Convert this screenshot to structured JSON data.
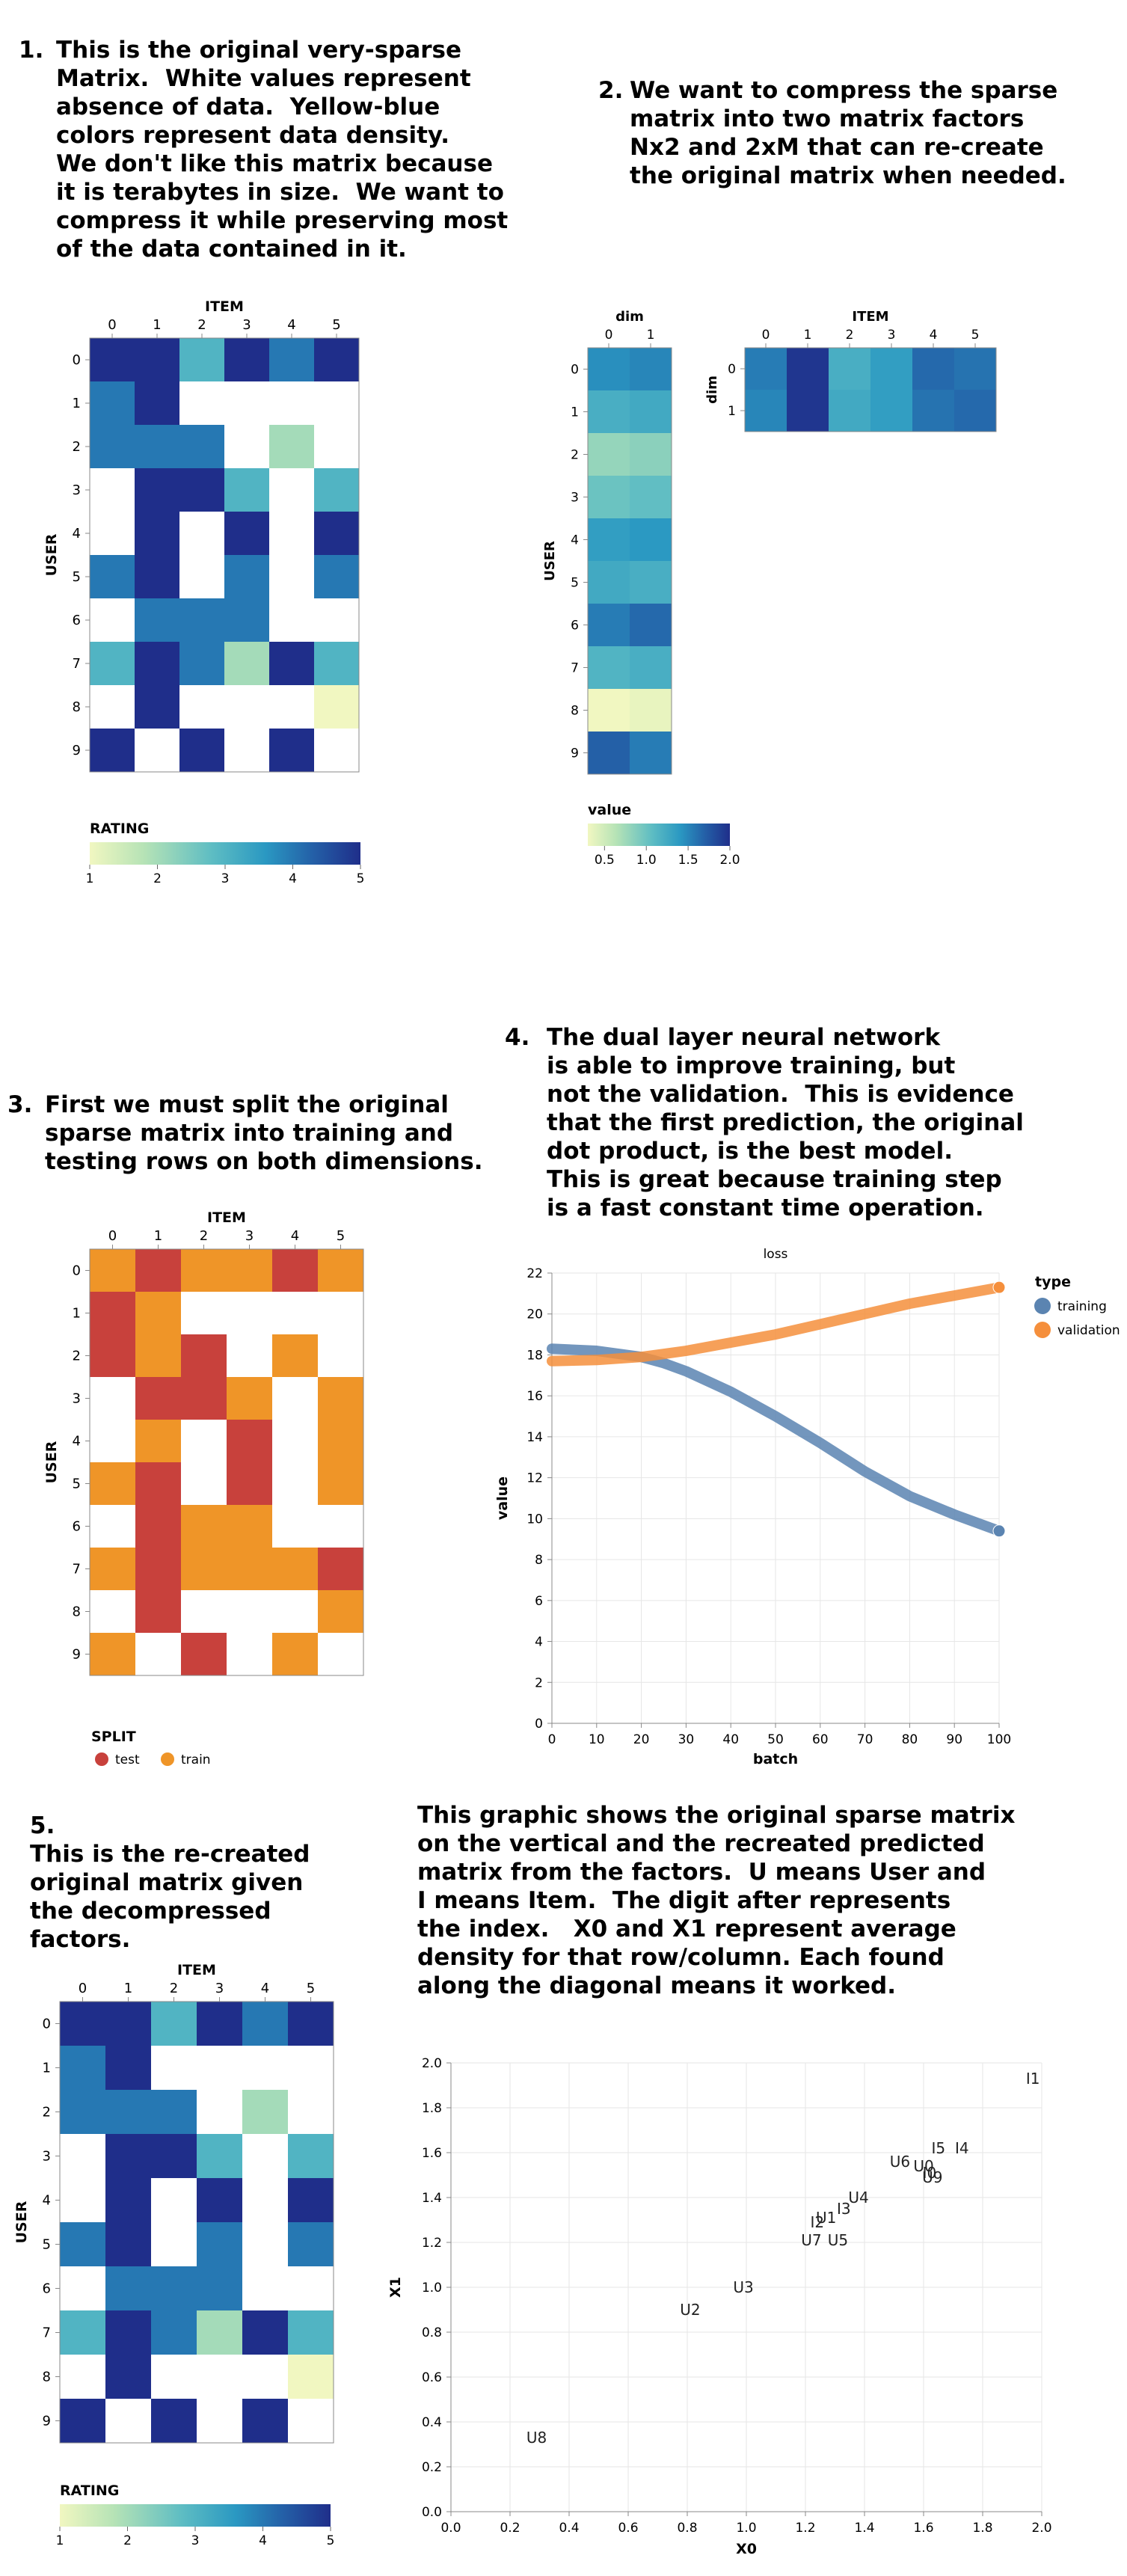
{
  "section1": {
    "number": "1.",
    "lines": [
      "This is the original very-sparse",
      "Matrix.  White values represent",
      "absence of data.  Yellow-blue",
      "colors represent data density.",
      "We don't like this matrix because",
      "it is terabytes in size.  We want to",
      "compress it while preserving most",
      "of the data contained in it."
    ]
  },
  "section2": {
    "number": "2.",
    "lines": [
      "We want to compress the sparse",
      "matrix into two matrix factors",
      "Nx2 and 2xM that can re-create",
      "the original matrix when needed."
    ]
  },
  "section3": {
    "number": "3.",
    "lines": [
      "First we must split the original",
      "sparse matrix into training and",
      "testing rows on both dimensions."
    ]
  },
  "section4": {
    "number": "4.",
    "lines": [
      "The dual layer neural network",
      "is able to improve training, but",
      "not the validation.  This is evidence",
      "that the first prediction, the original",
      "dot product, is the best model.",
      "This is great because training step",
      "is a fast constant time operation."
    ]
  },
  "section5": {
    "number": "5.",
    "lines": [
      "This is the re-created",
      "original matrix given",
      "the decompressed",
      "factors."
    ]
  },
  "section6": {
    "lines": [
      "This graphic shows the original sparse matrix",
      "on the vertical and the recreated predicted",
      "matrix from the factors.  U means User and",
      "I means Item.  The digit after represents",
      "the index.   X0 and X1 represent average",
      "density for that row/column. Each found",
      "along the diagonal means it worked."
    ]
  },
  "colors": {
    "test": "#c8413c",
    "train": "#ef9528",
    "training_line": "#5b84b1",
    "validation_line": "#f58f3c",
    "gradient": [
      "#f1f7c1",
      "#b6e3b6",
      "#5ebdc3",
      "#2a98c2",
      "#2461a8",
      "#1f2e8a"
    ]
  },
  "chart_data": [
    {
      "type": "heatmap",
      "id": "original_matrix",
      "xlabel": "ITEM",
      "ylabel": "USER",
      "x_ticks": [
        "0",
        "1",
        "2",
        "3",
        "4",
        "5"
      ],
      "y_ticks": [
        "0",
        "1",
        "2",
        "3",
        "4",
        "5",
        "6",
        "7",
        "8",
        "9"
      ],
      "values": [
        [
          5,
          5,
          3,
          5,
          4,
          5
        ],
        [
          4,
          5,
          null,
          null,
          null,
          null
        ],
        [
          4,
          4,
          4,
          null,
          2,
          null
        ],
        [
          null,
          5,
          5,
          3,
          null,
          3
        ],
        [
          null,
          5,
          null,
          5,
          null,
          5
        ],
        [
          4,
          5,
          null,
          4,
          null,
          4
        ],
        [
          null,
          4,
          4,
          4,
          null,
          null
        ],
        [
          3,
          5,
          4,
          2,
          5,
          3
        ],
        [
          null,
          5,
          null,
          null,
          null,
          1
        ],
        [
          5,
          null,
          5,
          null,
          5,
          null
        ]
      ],
      "legend_title": "RATING",
      "legend_ticks": [
        "1",
        "2",
        "3",
        "4",
        "5"
      ],
      "domain": [
        1,
        5
      ]
    },
    {
      "type": "heatmap",
      "id": "user_factors",
      "xlabel": "dim",
      "ylabel": "USER",
      "x_ticks": [
        "0",
        "1"
      ],
      "y_ticks": [
        "0",
        "1",
        "2",
        "3",
        "4",
        "5",
        "6",
        "7",
        "8",
        "9"
      ],
      "values": [
        [
          1.45,
          1.5
        ],
        [
          1.2,
          1.25
        ],
        [
          0.8,
          0.85
        ],
        [
          1.0,
          1.05
        ],
        [
          1.35,
          1.4
        ],
        [
          1.25,
          1.2
        ],
        [
          1.55,
          1.65
        ],
        [
          1.15,
          1.2
        ],
        [
          0.3,
          0.35
        ],
        [
          1.7,
          1.55
        ]
      ],
      "legend_title": "value",
      "legend_ticks": [
        "0.5",
        "1.0",
        "1.5",
        "2.0"
      ],
      "domain": [
        0.3,
        2.0
      ]
    },
    {
      "type": "heatmap",
      "id": "item_factors",
      "xlabel": "ITEM",
      "ylabel": "dim",
      "x_ticks": [
        "0",
        "1",
        "2",
        "3",
        "4",
        "5"
      ],
      "y_ticks": [
        "0",
        "1"
      ],
      "values": [
        [
          1.55,
          1.95,
          1.2,
          1.35,
          1.65,
          1.6
        ],
        [
          1.5,
          1.95,
          1.25,
          1.35,
          1.6,
          1.65
        ]
      ],
      "domain": [
        0.3,
        2.0
      ]
    },
    {
      "type": "heatmap",
      "id": "train_test_split",
      "xlabel": "ITEM",
      "ylabel": "USER",
      "x_ticks": [
        "0",
        "1",
        "2",
        "3",
        "4",
        "5"
      ],
      "y_ticks": [
        "0",
        "1",
        "2",
        "3",
        "4",
        "5",
        "6",
        "7",
        "8",
        "9"
      ],
      "values": [
        [
          "train",
          "test",
          "train",
          "train",
          "test",
          "train"
        ],
        [
          "test",
          "train",
          null,
          null,
          null,
          null
        ],
        [
          "test",
          "train",
          "test",
          null,
          "train",
          null
        ],
        [
          null,
          "test",
          "test",
          "train",
          null,
          "train"
        ],
        [
          null,
          "train",
          null,
          "test",
          null,
          "train"
        ],
        [
          "train",
          "test",
          null,
          "test",
          null,
          "train"
        ],
        [
          null,
          "test",
          "train",
          "train",
          null,
          null
        ],
        [
          "train",
          "test",
          "train",
          "train",
          "train",
          "test"
        ],
        [
          null,
          "test",
          null,
          null,
          null,
          "train"
        ],
        [
          "train",
          null,
          "test",
          null,
          "train",
          null
        ]
      ],
      "legend_title": "SPLIT",
      "legend_entries": [
        "test",
        "train"
      ]
    },
    {
      "type": "line",
      "id": "loss",
      "title": "loss",
      "xlabel": "batch",
      "ylabel": "value",
      "xlim": [
        0,
        100
      ],
      "ylim": [
        0,
        22
      ],
      "x_ticks": [
        0,
        10,
        20,
        30,
        40,
        50,
        60,
        70,
        80,
        90,
        100
      ],
      "y_ticks": [
        0,
        2,
        4,
        6,
        8,
        10,
        12,
        14,
        16,
        18,
        20,
        22
      ],
      "legend_title": "type",
      "series": [
        {
          "name": "training",
          "x": [
            0,
            10,
            20,
            25,
            30,
            40,
            50,
            60,
            70,
            80,
            90,
            100
          ],
          "values": [
            18.3,
            18.2,
            17.9,
            17.6,
            17.2,
            16.2,
            15.0,
            13.7,
            12.3,
            11.1,
            10.2,
            9.4
          ]
        },
        {
          "name": "validation",
          "x": [
            0,
            10,
            20,
            30,
            40,
            50,
            60,
            70,
            80,
            90,
            100
          ],
          "values": [
            17.7,
            17.75,
            17.9,
            18.2,
            18.6,
            19.0,
            19.5,
            20.0,
            20.5,
            20.9,
            21.3
          ]
        }
      ]
    },
    {
      "type": "heatmap",
      "id": "recreated_matrix",
      "xlabel": "ITEM",
      "ylabel": "USER",
      "x_ticks": [
        "0",
        "1",
        "2",
        "3",
        "4",
        "5"
      ],
      "y_ticks": [
        "0",
        "1",
        "2",
        "3",
        "4",
        "5",
        "6",
        "7",
        "8",
        "9"
      ],
      "values": [
        [
          5,
          5,
          3,
          5,
          4,
          5
        ],
        [
          4,
          5,
          null,
          null,
          null,
          null
        ],
        [
          4,
          4,
          4,
          null,
          2,
          null
        ],
        [
          null,
          5,
          5,
          3,
          null,
          3
        ],
        [
          null,
          5,
          null,
          5,
          null,
          5
        ],
        [
          4,
          5,
          null,
          4,
          null,
          4
        ],
        [
          null,
          4,
          4,
          4,
          null,
          null
        ],
        [
          3,
          5,
          4,
          2,
          5,
          3
        ],
        [
          null,
          5,
          null,
          null,
          null,
          1
        ],
        [
          5,
          null,
          5,
          null,
          5,
          null
        ]
      ],
      "legend_title": "RATING",
      "legend_ticks": [
        "1",
        "2",
        "3",
        "4",
        "5"
      ],
      "domain": [
        1,
        5
      ]
    },
    {
      "type": "scatter",
      "id": "factor_scatter",
      "xlabel": "X0",
      "ylabel": "X1",
      "xlim": [
        0,
        2
      ],
      "ylim": [
        0,
        2
      ],
      "x_ticks": [
        "0.0",
        "0.2",
        "0.4",
        "0.6",
        "0.8",
        "1.0",
        "1.2",
        "1.4",
        "1.6",
        "1.8",
        "2.0"
      ],
      "y_ticks": [
        "0.0",
        "0.2",
        "0.4",
        "0.6",
        "0.8",
        "1.0",
        "1.2",
        "1.4",
        "1.6",
        "1.8",
        "2.0"
      ],
      "points": [
        {
          "label": "I1",
          "x": 1.97,
          "y": 1.93
        },
        {
          "label": "I5",
          "x": 1.65,
          "y": 1.62
        },
        {
          "label": "I4",
          "x": 1.73,
          "y": 1.62
        },
        {
          "label": "U6",
          "x": 1.52,
          "y": 1.56
        },
        {
          "label": "U0",
          "x": 1.6,
          "y": 1.54
        },
        {
          "label": "I0",
          "x": 1.62,
          "y": 1.51
        },
        {
          "label": "U9",
          "x": 1.63,
          "y": 1.49
        },
        {
          "label": "U4",
          "x": 1.38,
          "y": 1.4
        },
        {
          "label": "I3",
          "x": 1.33,
          "y": 1.35
        },
        {
          "label": "U1",
          "x": 1.27,
          "y": 1.31
        },
        {
          "label": "I2",
          "x": 1.24,
          "y": 1.29
        },
        {
          "label": "U7",
          "x": 1.22,
          "y": 1.21
        },
        {
          "label": "U5",
          "x": 1.31,
          "y": 1.21
        },
        {
          "label": "U3",
          "x": 0.99,
          "y": 1.0
        },
        {
          "label": "U2",
          "x": 0.81,
          "y": 0.9
        },
        {
          "label": "U8",
          "x": 0.29,
          "y": 0.33
        }
      ]
    }
  ]
}
